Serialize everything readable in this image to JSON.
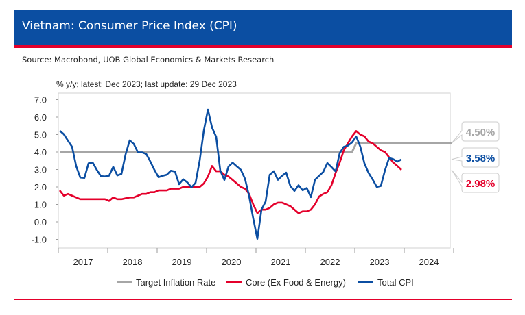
{
  "header": {
    "title": "Vietnam: Consumer Price Index (CPI)",
    "source": "Source: Macrobond, UOB Global Economics & Markets Research"
  },
  "chart_data": {
    "type": "line",
    "title": "Vietnam: Consumer Price Index (CPI)",
    "subtitle": "% y/y; latest: Dec 2023; last update: 29 Dec 2023",
    "xlabel": "",
    "ylabel": "",
    "ylim": [
      -1.4,
      7.4
    ],
    "yticks": [
      "7.0",
      "6.0",
      "5.0",
      "4.0",
      "3.0",
      "2.0",
      "1.0",
      "0.0",
      "-1.0"
    ],
    "xticks": [
      "2017",
      "2018",
      "2019",
      "2020",
      "2021",
      "2022",
      "2023",
      "2024"
    ],
    "x_start": "2017-01",
    "x_frequency": "monthly",
    "grid": false,
    "legend_position": "bottom",
    "series": [
      {
        "name": "Target Inflation Rate",
        "color": "#a6a6a6",
        "values": [
          4,
          4,
          4,
          4,
          4,
          4,
          4,
          4,
          4,
          4,
          4,
          4,
          4,
          4,
          4,
          4,
          4,
          4,
          4,
          4,
          4,
          4,
          4,
          4,
          4,
          4,
          4,
          4,
          4,
          4,
          4,
          4,
          4,
          4,
          4,
          4,
          4,
          4,
          4,
          4,
          4,
          4,
          4,
          4,
          4,
          4,
          4,
          4,
          4,
          4,
          4,
          4,
          4,
          4,
          4,
          4,
          4,
          4,
          4,
          4,
          4,
          4,
          4,
          4,
          4,
          4,
          4,
          4,
          4,
          4,
          4,
          4,
          4.5,
          4.5,
          4.5,
          4.5,
          4.5,
          4.5,
          4.5,
          4.5,
          4.5,
          4.5,
          4.5,
          4.5,
          4.5,
          4.5,
          4.5,
          4.5,
          4.5,
          4.5,
          4.5,
          4.5,
          4.5,
          4.5,
          4.5,
          4.5
        ],
        "end_label": "4.50%"
      },
      {
        "name": "Core (Ex Food & Energy)",
        "color": "#e4002b",
        "values": [
          1.8,
          1.5,
          1.6,
          1.5,
          1.4,
          1.3,
          1.3,
          1.3,
          1.3,
          1.3,
          1.3,
          1.3,
          1.2,
          1.4,
          1.3,
          1.3,
          1.35,
          1.4,
          1.4,
          1.5,
          1.6,
          1.6,
          1.7,
          1.7,
          1.8,
          1.8,
          1.8,
          1.9,
          1.9,
          1.9,
          2.0,
          2.0,
          2.0,
          2.0,
          2.0,
          2.2,
          2.6,
          3.2,
          2.9,
          2.9,
          2.7,
          2.6,
          2.4,
          2.2,
          2.0,
          1.9,
          1.6,
          1.0,
          0.5,
          0.7,
          0.7,
          0.8,
          1.0,
          1.1,
          1.1,
          1.0,
          0.9,
          0.7,
          0.5,
          0.6,
          0.6,
          0.7,
          1.0,
          1.45,
          1.6,
          1.7,
          2.1,
          2.8,
          3.4,
          4.1,
          4.5,
          4.9,
          5.2,
          5.0,
          4.9,
          4.6,
          4.5,
          4.3,
          4.1,
          4.0,
          3.7,
          3.4,
          3.2,
          2.98
        ],
        "end_label": "2.98%"
      },
      {
        "name": "Total CPI",
        "color": "#0b4ea2",
        "values": [
          5.22,
          5.02,
          4.65,
          4.3,
          3.19,
          2.54,
          2.52,
          3.35,
          3.4,
          2.98,
          2.62,
          2.6,
          2.65,
          3.15,
          2.66,
          2.75,
          3.86,
          4.67,
          4.46,
          3.98,
          3.98,
          3.89,
          3.46,
          2.98,
          2.56,
          2.64,
          2.7,
          2.93,
          2.88,
          2.16,
          2.44,
          2.26,
          1.98,
          2.24,
          3.52,
          5.23,
          6.43,
          5.4,
          4.87,
          2.93,
          2.4,
          3.17,
          3.39,
          3.18,
          2.98,
          2.47,
          1.48,
          0.19,
          -0.97,
          0.7,
          1.16,
          2.7,
          2.9,
          2.41,
          2.64,
          2.82,
          2.06,
          1.77,
          2.1,
          1.81,
          1.94,
          1.42,
          2.41,
          2.64,
          2.86,
          3.37,
          3.14,
          2.89,
          3.94,
          4.3,
          4.37,
          4.55,
          4.89,
          4.31,
          3.35,
          2.81,
          2.43,
          2.0,
          2.06,
          2.96,
          3.66,
          3.59,
          3.45,
          3.58
        ],
        "end_label": "3.58%"
      }
    ]
  }
}
